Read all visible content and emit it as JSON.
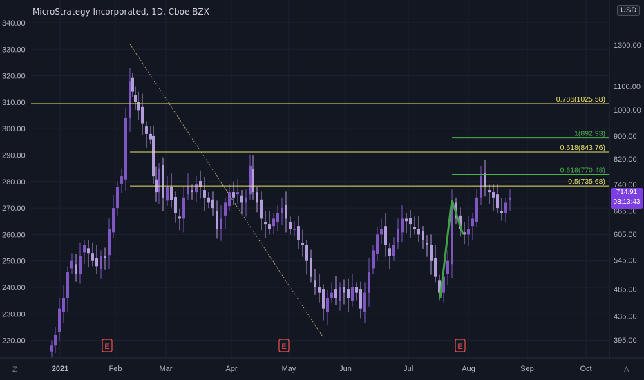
{
  "header": {
    "title": "MicroStrategy Incorporated, 1D, Cboe BZX",
    "currency_button": "USD"
  },
  "price_tag": {
    "price": "714.91",
    "countdown": "03:13:43"
  },
  "corners": {
    "left": "Z",
    "right": "A"
  },
  "colors": {
    "background": "#131722",
    "candle": "#7e57c2",
    "candle_alt": "#b39ddb",
    "fib_yellow": "#e8e36a",
    "fib_green": "#4caf50",
    "axis_text": "#b2b5be"
  },
  "chart_data": {
    "type": "candlestick",
    "left_axis": {
      "ticks": [
        340,
        330,
        320,
        310,
        300,
        290,
        280,
        270,
        260,
        250,
        240,
        230,
        220
      ],
      "labels": [
        "340.00",
        "330.00",
        "320.00",
        "310.00",
        "300.00",
        "290.00",
        "280.00",
        "270.00",
        "260.00",
        "250.00",
        "240.00",
        "230.00",
        "220.00"
      ]
    },
    "right_axis": {
      "scale": "log",
      "labels": [
        "1300.00",
        "1100.00",
        "1000.00",
        "900.00",
        "820.00",
        "740.00",
        "665.00",
        "605.00",
        "545.00",
        "485.00",
        "435.00",
        "395.00"
      ],
      "values": [
        1300,
        1100,
        1000,
        900,
        820,
        740,
        665,
        605,
        545,
        485,
        435,
        395
      ]
    },
    "x_axis": {
      "labels": [
        "2021",
        "Feb",
        "Mar",
        "Apr",
        "May",
        "Jun",
        "Jul",
        "Aug",
        "Sep",
        "Oct"
      ]
    },
    "fib_levels": [
      {
        "label": "0.786(1025.58)",
        "value": 1025.58,
        "color": "yellow"
      },
      {
        "label": "0.618(843.76)",
        "value": 843.76,
        "color": "yellow"
      },
      {
        "label": "0.5(735.68)",
        "value": 735.68,
        "color": "yellow"
      },
      {
        "label": "1(892.93)",
        "value": 892.93,
        "color": "green"
      },
      {
        "label": "0.618(770.48)",
        "value": 770.48,
        "color": "green"
      }
    ],
    "earnings_markers": [
      "E",
      "E",
      "E"
    ]
  }
}
